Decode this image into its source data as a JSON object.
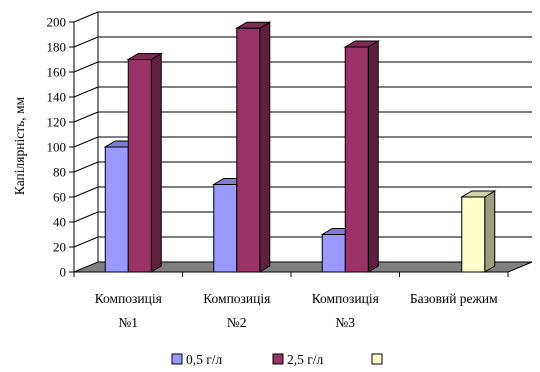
{
  "chart_data": {
    "type": "bar",
    "style": "3d-clustered-column",
    "ylabel": "Капілярність, мм",
    "xlabel": "",
    "title": "",
    "ylim": [
      0,
      200
    ],
    "yticks": [
      0,
      20,
      40,
      60,
      80,
      100,
      120,
      140,
      160,
      180,
      200
    ],
    "categories": [
      [
        "Композиція",
        "№1"
      ],
      [
        "Композиція",
        "№2"
      ],
      [
        "Композиція",
        "№3"
      ],
      [
        "Базовий режим"
      ]
    ],
    "series": [
      {
        "name": "0,5 г/л",
        "color": "#9999FF",
        "values": [
          100,
          70,
          30,
          null
        ]
      },
      {
        "name": "2,5 г/л",
        "color": "#993366",
        "values": [
          170,
          195,
          180,
          null
        ]
      },
      {
        "name": "",
        "color": "#FFFFCC",
        "values": [
          null,
          null,
          null,
          60
        ]
      }
    ],
    "grid": true,
    "legend": "bottom",
    "wall_color": "#ffffff",
    "floor_color": "#808080"
  }
}
